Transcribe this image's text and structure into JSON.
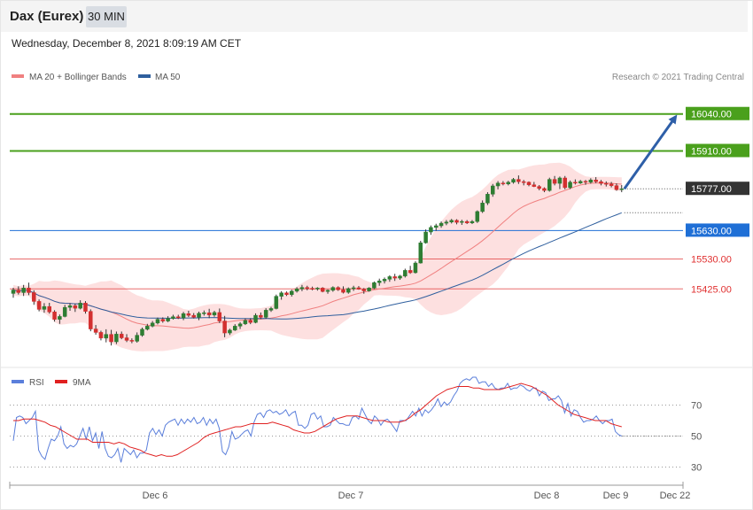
{
  "header": {
    "title": "Dax (Eurex)",
    "interval": "30 MIN"
  },
  "datetime": "Wednesday, December 8, 2021 8:09:19 AM CET",
  "legend": {
    "ma20": "MA 20 + Bollinger Bands",
    "ma50": "MA 50",
    "credit": "Research © 2021 Trading Central",
    "rsi": "RSI",
    "rsi_ma": "9MA"
  },
  "colors": {
    "ma20": "#f08080",
    "ma50": "#2f5f9e",
    "band": "#fde0e0",
    "resistance": "#4aa01c",
    "pivot": "#1f6fd6",
    "support": "#e03030",
    "up_candle": "#2e7d32",
    "down_candle": "#d32f2f",
    "arrow": "#2e5fa8",
    "rsi": "#5b7fdb",
    "rsi_ma": "#e02020"
  },
  "levels": [
    {
      "value": 16040,
      "label": "16040.00",
      "type": "resistance"
    },
    {
      "value": 15910,
      "label": "15910.00",
      "type": "resistance"
    },
    {
      "value": 15777,
      "label": "15777.00",
      "type": "current"
    },
    {
      "value": 15630,
      "label": "15630.00",
      "type": "pivot"
    },
    {
      "value": 15530,
      "label": "15530.00",
      "type": "support"
    },
    {
      "value": 15425,
      "label": "15425.00",
      "type": "support"
    }
  ],
  "chart_data": [
    {
      "type": "candlestick",
      "title": "",
      "ylim": [
        15155,
        16145
      ],
      "x_tick_labels": [
        "Dec 6",
        "Dec 7",
        "Dec 8",
        "Dec 9",
        "Dec 22"
      ],
      "ohlc": [
        [
          15409,
          15429,
          15394,
          15421
        ],
        [
          15421,
          15434,
          15405,
          15412
        ],
        [
          15412,
          15439,
          15400,
          15428
        ],
        [
          15428,
          15447,
          15403,
          15412
        ],
        [
          15412,
          15420,
          15369,
          15381
        ],
        [
          15381,
          15388,
          15346,
          15353
        ],
        [
          15353,
          15375,
          15341,
          15363
        ],
        [
          15363,
          15376,
          15338,
          15344
        ],
        [
          15344,
          15350,
          15310,
          15318
        ],
        [
          15318,
          15335,
          15302,
          15328
        ],
        [
          15328,
          15369,
          15325,
          15360
        ],
        [
          15360,
          15375,
          15348,
          15366
        ],
        [
          15366,
          15373,
          15344,
          15357
        ],
        [
          15357,
          15385,
          15353,
          15375
        ],
        [
          15375,
          15382,
          15338,
          15346
        ],
        [
          15346,
          15353,
          15276,
          15284
        ],
        [
          15284,
          15298,
          15264,
          15272
        ],
        [
          15272,
          15278,
          15244,
          15252
        ],
        [
          15252,
          15283,
          15237,
          15265
        ],
        [
          15265,
          15281,
          15226,
          15239
        ],
        [
          15239,
          15275,
          15231,
          15266
        ],
        [
          15266,
          15275,
          15248,
          15253
        ],
        [
          15253,
          15266,
          15238,
          15244
        ],
        [
          15244,
          15251,
          15234,
          15241
        ],
        [
          15241,
          15272,
          15236,
          15262
        ],
        [
          15262,
          15289,
          15257,
          15283
        ],
        [
          15283,
          15302,
          15279,
          15294
        ],
        [
          15294,
          15312,
          15290,
          15305
        ],
        [
          15305,
          15324,
          15300,
          15318
        ],
        [
          15318,
          15325,
          15306,
          15312
        ],
        [
          15312,
          15329,
          15308,
          15321
        ],
        [
          15321,
          15334,
          15317,
          15327
        ],
        [
          15327,
          15334,
          15319,
          15323
        ],
        [
          15323,
          15344,
          15315,
          15338
        ],
        [
          15338,
          15348,
          15326,
          15332
        ],
        [
          15332,
          15340,
          15321,
          15325
        ],
        [
          15325,
          15345,
          15315,
          15339
        ],
        [
          15339,
          15349,
          15331,
          15341
        ],
        [
          15341,
          15355,
          15322,
          15333
        ],
        [
          15333,
          15348,
          15327,
          15342
        ],
        [
          15342,
          15356,
          15305,
          15312
        ],
        [
          15312,
          15330,
          15255,
          15270
        ],
        [
          15270,
          15285,
          15263,
          15280
        ],
        [
          15280,
          15301,
          15277,
          15294
        ],
        [
          15294,
          15308,
          15284,
          15302
        ],
        [
          15302,
          15321,
          15298,
          15314
        ],
        [
          15314,
          15322,
          15301,
          15307
        ],
        [
          15307,
          15339,
          15304,
          15332
        ],
        [
          15332,
          15342,
          15319,
          15325
        ],
        [
          15325,
          15357,
          15320,
          15350
        ],
        [
          15350,
          15362,
          15344,
          15356
        ],
        [
          15356,
          15405,
          15353,
          15399
        ],
        [
          15399,
          15417,
          15387,
          15411
        ],
        [
          15411,
          15416,
          15400,
          15405
        ],
        [
          15405,
          15422,
          15398,
          15417
        ],
        [
          15417,
          15431,
          15412,
          15425
        ],
        [
          15425,
          15439,
          15417,
          15430
        ],
        [
          15430,
          15436,
          15420,
          15427
        ],
        [
          15427,
          15433,
          15420,
          15425
        ],
        [
          15425,
          15431,
          15419,
          15428
        ],
        [
          15428,
          15431,
          15413,
          15416
        ],
        [
          15416,
          15423,
          15408,
          15420
        ],
        [
          15420,
          15434,
          15415,
          15430
        ],
        [
          15430,
          15434,
          15418,
          15422
        ],
        [
          15422,
          15434,
          15409,
          15413
        ],
        [
          15413,
          15430,
          15408,
          15426
        ],
        [
          15426,
          15436,
          15418,
          15429
        ],
        [
          15429,
          15435,
          15422,
          15424
        ],
        [
          15424,
          15428,
          15408,
          15418
        ],
        [
          15418,
          15431,
          15415,
          15428
        ],
        [
          15428,
          15451,
          15424,
          15447
        ],
        [
          15447,
          15461,
          15436,
          15453
        ],
        [
          15453,
          15465,
          15444,
          15459
        ],
        [
          15459,
          15473,
          15450,
          15468
        ],
        [
          15468,
          15478,
          15453,
          15463
        ],
        [
          15463,
          15474,
          15457,
          15470
        ],
        [
          15470,
          15496,
          15465,
          15490
        ],
        [
          15490,
          15506,
          15478,
          15482
        ],
        [
          15482,
          15522,
          15479,
          15516
        ],
        [
          15516,
          15594,
          15514,
          15587
        ],
        [
          15587,
          15634,
          15584,
          15625
        ],
        [
          15625,
          15648,
          15615,
          15641
        ],
        [
          15641,
          15654,
          15629,
          15647
        ],
        [
          15647,
          15662,
          15640,
          15656
        ],
        [
          15656,
          15667,
          15649,
          15660
        ],
        [
          15660,
          15671,
          15655,
          15666
        ],
        [
          15666,
          15670,
          15652,
          15659
        ],
        [
          15659,
          15668,
          15650,
          15662
        ],
        [
          15662,
          15667,
          15653,
          15657
        ],
        [
          15657,
          15667,
          15653,
          15662
        ],
        [
          15662,
          15701,
          15657,
          15697
        ],
        [
          15697,
          15736,
          15692,
          15727
        ],
        [
          15727,
          15765,
          15720,
          15758
        ],
        [
          15758,
          15794,
          15749,
          15787
        ],
        [
          15787,
          15804,
          15775,
          15797
        ],
        [
          15797,
          15804,
          15789,
          15794
        ],
        [
          15794,
          15805,
          15789,
          15800
        ],
        [
          15800,
          15815,
          15795,
          15810
        ],
        [
          15810,
          15824,
          15794,
          15802
        ],
        [
          15802,
          15808,
          15789,
          15800
        ],
        [
          15800,
          15803,
          15786,
          15791
        ],
        [
          15791,
          15801,
          15783,
          15785
        ],
        [
          15785,
          15790,
          15772,
          15778
        ],
        [
          15778,
          15782,
          15765,
          15771
        ],
        [
          15771,
          15816,
          15767,
          15810
        ],
        [
          15810,
          15822,
          15789,
          15796
        ],
        [
          15796,
          15820,
          15776,
          15815
        ],
        [
          15815,
          15822,
          15775,
          15781
        ],
        [
          15781,
          15806,
          15776,
          15800
        ],
        [
          15800,
          15810,
          15792,
          15797
        ],
        [
          15797,
          15808,
          15794,
          15803
        ],
        [
          15803,
          15808,
          15791,
          15800
        ],
        [
          15800,
          15814,
          15795,
          15808
        ],
        [
          15808,
          15818,
          15797,
          15802
        ],
        [
          15802,
          15808,
          15789,
          15796
        ],
        [
          15796,
          15803,
          15785,
          15794
        ],
        [
          15794,
          15801,
          15782,
          15788
        ],
        [
          15788,
          15796,
          15770,
          15774
        ],
        [
          15774,
          15790,
          15765,
          15777
        ]
      ]
    },
    {
      "type": "line",
      "title": "RSI",
      "ylim": [
        20,
        80
      ],
      "y_ticks": [
        70,
        50,
        30
      ],
      "series": [
        {
          "name": "RSI",
          "values": [
            47,
            62,
            63,
            62,
            58,
            60,
            62,
            66,
            41,
            37,
            35,
            42,
            48,
            47,
            50,
            56,
            45,
            42,
            44,
            43,
            45,
            50,
            55,
            48,
            56,
            47,
            52,
            42,
            53,
            42,
            37,
            36,
            38,
            42,
            33,
            42,
            40,
            38,
            41,
            36,
            39,
            39,
            41,
            52,
            55,
            51,
            54,
            50,
            57,
            59,
            60,
            61,
            57,
            61,
            58,
            61,
            59,
            62,
            58,
            59,
            62,
            57,
            61,
            58,
            61,
            55,
            40,
            38,
            43,
            53,
            48,
            49,
            51,
            53,
            54,
            50,
            59,
            64,
            65,
            62,
            66,
            67,
            65,
            66,
            64,
            65,
            67,
            63,
            65,
            66,
            57,
            57,
            55,
            57,
            64,
            65,
            61,
            63,
            56,
            56,
            57,
            62,
            60,
            58,
            58,
            57,
            57,
            62,
            63,
            61,
            68,
            64,
            60,
            58,
            63,
            61,
            57,
            60,
            61,
            59,
            56,
            53,
            60,
            60,
            60,
            63,
            66,
            63,
            68,
            63,
            67,
            65,
            67,
            70,
            74,
            69,
            72,
            70,
            72,
            76,
            79,
            84,
            86,
            87,
            86,
            88,
            88,
            84,
            85,
            85,
            82,
            84,
            81,
            80,
            81,
            81,
            84,
            80,
            81,
            81,
            83,
            82,
            80,
            79,
            81,
            81,
            76,
            79,
            78,
            73,
            74,
            74,
            76,
            73,
            65,
            71,
            63,
            67,
            66,
            62,
            59,
            60,
            60,
            61,
            63,
            60,
            58,
            60,
            60,
            61,
            53,
            51,
            50
          ]
        },
        {
          "name": "9MA",
          "values": [
            60,
            60,
            61,
            61,
            61,
            60,
            59,
            57,
            56,
            54,
            52,
            50,
            48,
            48,
            48,
            46,
            46,
            46,
            46,
            45,
            46,
            45,
            43,
            42,
            41,
            39,
            38,
            37,
            38,
            37,
            37,
            38,
            40,
            42,
            44,
            46,
            49,
            51,
            52,
            53,
            54,
            55,
            56,
            56,
            57,
            58,
            58,
            58,
            58,
            59,
            58,
            57,
            56,
            54,
            53,
            52,
            52,
            53,
            55,
            57,
            59,
            61,
            62,
            63,
            63,
            63,
            62,
            61,
            60,
            60,
            60,
            59,
            59,
            59,
            60,
            62,
            65,
            67,
            70,
            73,
            76,
            78,
            80,
            81,
            82,
            82,
            82,
            81,
            81,
            80,
            80,
            80,
            80,
            81,
            82,
            83,
            84,
            83,
            82,
            80,
            78,
            76,
            73,
            70,
            68,
            66,
            64,
            63,
            62,
            61,
            60,
            60,
            60,
            58,
            57,
            56
          ]
        }
      ]
    }
  ]
}
